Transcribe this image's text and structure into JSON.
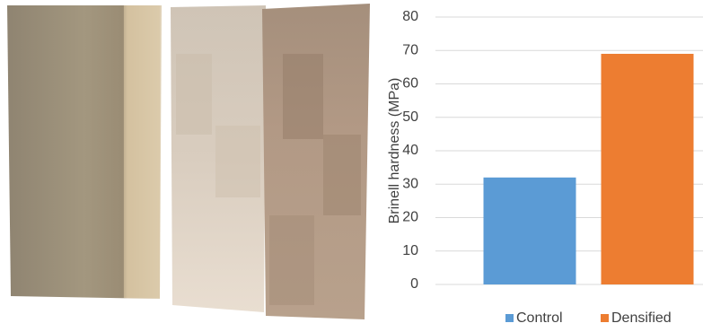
{
  "chart_data": {
    "type": "bar",
    "y_label": "Brinell hardness (MPa)",
    "series": [
      {
        "name": "Control",
        "color": "#5b9bd5",
        "values": [
          32
        ]
      },
      {
        "name": "Densified",
        "color": "#ed7d31",
        "values": [
          69
        ]
      }
    ],
    "ylim": [
      0,
      80
    ],
    "yticks": [
      0,
      10,
      20,
      30,
      40,
      50,
      60,
      70,
      80
    ],
    "grid": true,
    "legend": "bottom"
  }
}
